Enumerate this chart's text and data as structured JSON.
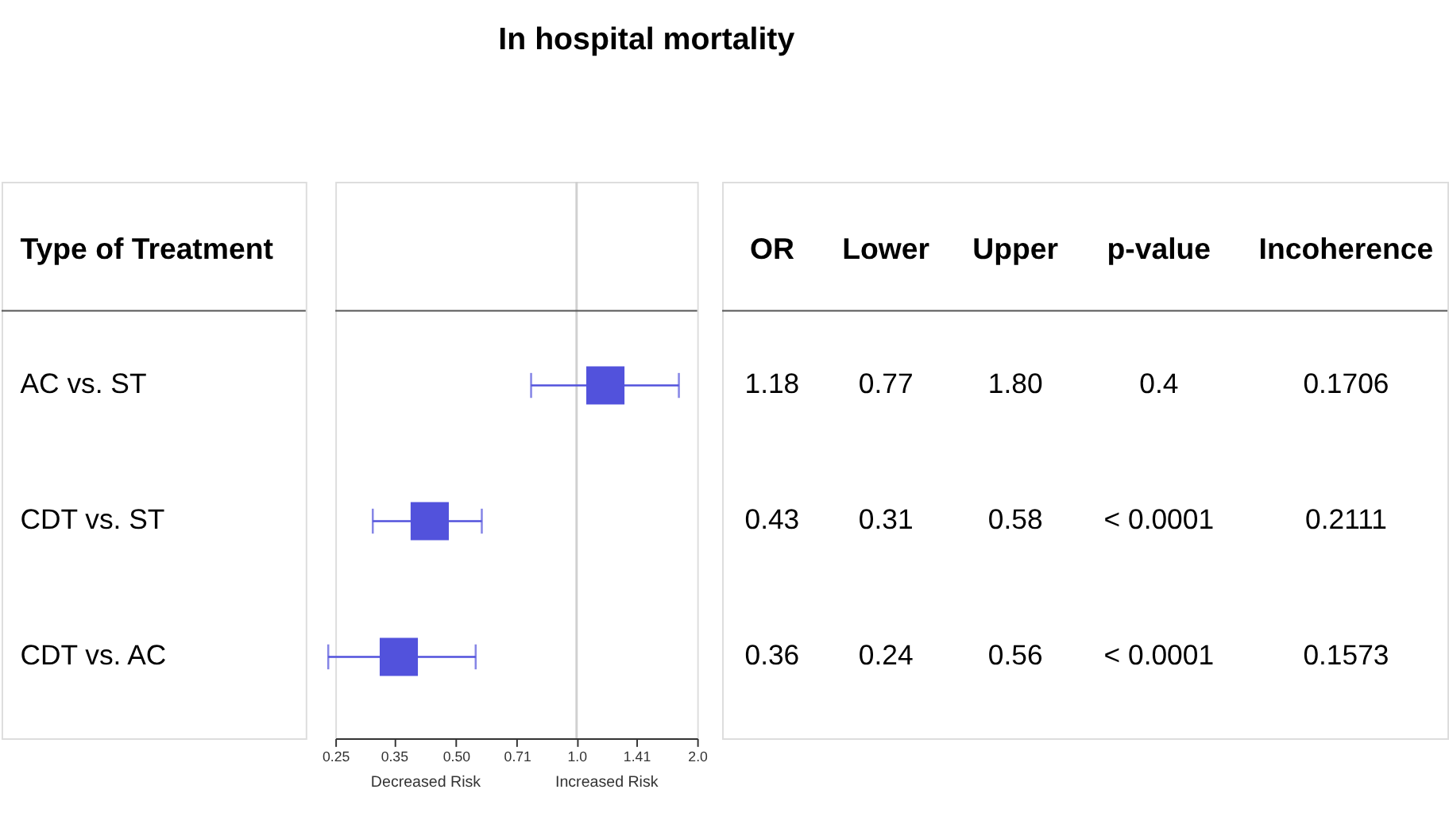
{
  "chart_data": {
    "type": "scatter",
    "orientation": "horizontal",
    "title": "In hospital mortality",
    "ylabel": "Type of Treatment",
    "categories": [
      "AC vs. ST",
      "CDT vs. ST",
      "CDT vs. AC"
    ],
    "values": [
      1.18,
      0.43,
      0.36
    ],
    "errors": [
      [
        0.77,
        1.8
      ],
      [
        0.31,
        0.58
      ],
      [
        0.24,
        0.56
      ]
    ],
    "color": "#5252dc",
    "marker": "square",
    "data_labels": true,
    "log": "x",
    "xlim": [
      0.25,
      2.0
    ],
    "xticks": [
      {
        "value": 0.25,
        "label": "0.25"
      },
      {
        "value": 0.35,
        "label": "0.35"
      },
      {
        "value": 0.5,
        "label": "0.50"
      },
      {
        "value": 0.71,
        "label": "0.71"
      },
      {
        "value": 1.0,
        "label": "1.0"
      },
      {
        "value": 1.41,
        "label": "1.41"
      },
      {
        "value": 2.0,
        "label": "2.0"
      }
    ],
    "ref_lines": [
      {
        "axis": "x",
        "value": 1.0,
        "color": "#d0d0d0"
      }
    ],
    "annotations": [
      "OR",
      "Lower",
      "Upper",
      "p-value",
      "Incoherence",
      "Decreased Risk",
      "Increased Risk",
      "0.77",
      "1.80",
      "0.4",
      "0.1706",
      "0.31",
      "0.58",
      "< 0.0001",
      "0.2111",
      "0.24",
      "0.56",
      "< 0.0001",
      "0.1573"
    ]
  }
}
